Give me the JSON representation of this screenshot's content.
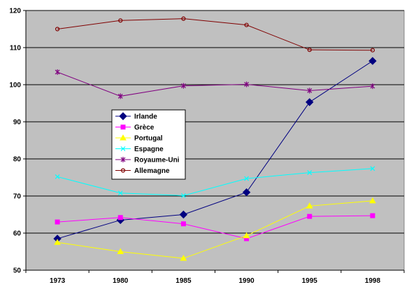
{
  "chart_data": {
    "type": "line",
    "title": "",
    "xlabel": "",
    "ylabel": "",
    "categories": [
      "1973",
      "1980",
      "1985",
      "1990",
      "1995",
      "1998"
    ],
    "ylim": [
      50,
      120
    ],
    "yticks": [
      50,
      60,
      70,
      80,
      90,
      100,
      110,
      120
    ],
    "grid": "horizontal",
    "legend_position": "inside-left",
    "plot_background": "#c0c0c0",
    "series": [
      {
        "name": "Irlande",
        "color": "#000080",
        "marker": "diamond",
        "values": [
          58.5,
          63.5,
          65,
          71,
          95.3,
          106.4
        ]
      },
      {
        "name": "Grèce",
        "color": "#ff00ff",
        "marker": "square",
        "values": [
          63,
          64.2,
          62.5,
          58.5,
          64.5,
          64.7
        ]
      },
      {
        "name": "Portugal",
        "color": "#ffff00",
        "marker": "triangle",
        "values": [
          57.5,
          55,
          53.2,
          59.3,
          67.3,
          68.7
        ]
      },
      {
        "name": "Espagne",
        "color": "#00ffff",
        "marker": "x",
        "values": [
          75.2,
          70.8,
          70.1,
          74.7,
          76.3,
          77.4
        ]
      },
      {
        "name": "Royaume-Uni",
        "color": "#800080",
        "marker": "star",
        "values": [
          103.4,
          96.9,
          99.7,
          100.1,
          98.4,
          99.6
        ]
      },
      {
        "name": "Allemagne",
        "color": "#800000",
        "marker": "circle",
        "values": [
          115,
          117.3,
          117.8,
          116.1,
          109.4,
          109.3
        ]
      }
    ]
  }
}
